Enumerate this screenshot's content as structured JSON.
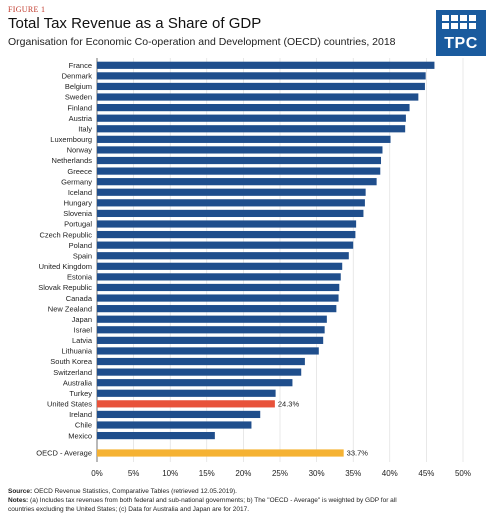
{
  "figure_label": "FIGURE 1",
  "title": "Total Tax Revenue as a Share of GDP",
  "subtitle": "Organisation for Economic Co-operation and Development (OECD) countries, 2018",
  "logo_text": "TPC",
  "colors": {
    "bar": "#1f4e8c",
    "highlight": "#e8523a",
    "average": "#f5b233",
    "grid": "#d9d9d9",
    "logo": "#1a5b9e"
  },
  "chart_data": {
    "type": "bar",
    "orientation": "horizontal",
    "categories": [
      "France",
      "Denmark",
      "Belgium",
      "Sweden",
      "Finland",
      "Austria",
      "Italy",
      "Luxembourg",
      "Norway",
      "Netherlands",
      "Greece",
      "Germany",
      "Iceland",
      "Hungary",
      "Slovenia",
      "Portugal",
      "Czech Republic",
      "Poland",
      "Spain",
      "United Kingdom",
      "Estonia",
      "Slovak Republic",
      "Canada",
      "New Zealand",
      "Japan",
      "Israel",
      "Latvia",
      "Lithuania",
      "South Korea",
      "Switzerland",
      "Australia",
      "Turkey",
      "United States",
      "Ireland",
      "Chile",
      "Mexico"
    ],
    "values": [
      46.1,
      44.9,
      44.8,
      43.9,
      42.7,
      42.2,
      42.1,
      40.1,
      39.0,
      38.8,
      38.7,
      38.2,
      36.7,
      36.6,
      36.4,
      35.4,
      35.3,
      35.0,
      34.4,
      33.5,
      33.3,
      33.1,
      33.0,
      32.7,
      31.4,
      31.1,
      30.9,
      30.3,
      28.4,
      27.9,
      26.7,
      24.4,
      24.3,
      22.3,
      21.1,
      16.1
    ],
    "highlight_category": "United States",
    "highlight_label": "24.3%",
    "average": {
      "label": "OECD - Average",
      "value": 33.7,
      "value_label": "33.7%"
    },
    "xlim": [
      0,
      50
    ],
    "x_ticks": [
      "0%",
      "5%",
      "10%",
      "15%",
      "20%",
      "25%",
      "30%",
      "35%",
      "40%",
      "45%",
      "50%"
    ],
    "grid": true
  },
  "notes": {
    "source_label": "Source:",
    "source_text": " OECD Revenue Statistics, Comparative Tables (retrieved 12.05.2019).",
    "notes_label": "Notes:",
    "notes_text": " (a) Includes tax revenues from both federal and sub-national governments; b) The \"OECD - Average\" is weighted by GDP for all",
    "notes_text_2": "countries excluding the United States; (c) Data for Australia and Japan are for 2017."
  }
}
